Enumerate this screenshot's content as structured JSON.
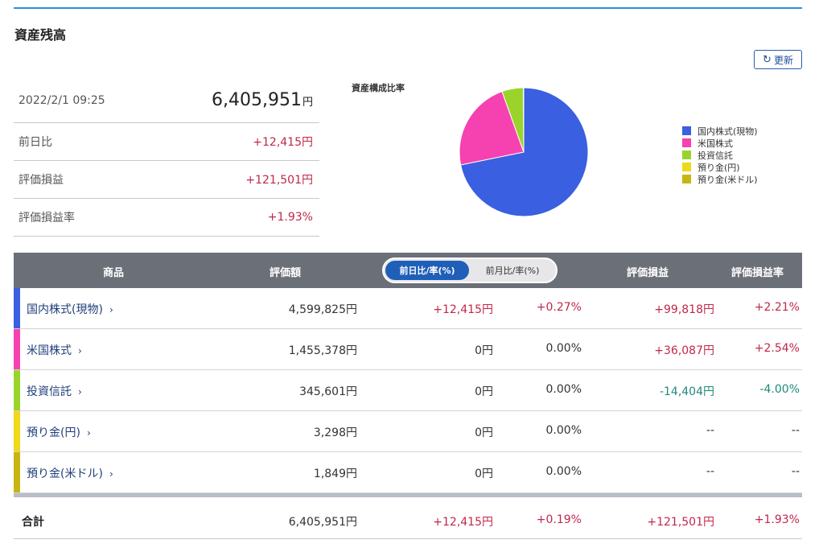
{
  "title": "資産残高",
  "refresh_label": "更新",
  "summary": {
    "datetime": "2022/2/1 09:25",
    "total_value": "6,405,951",
    "total_unit": "円",
    "rows": [
      {
        "label": "前日比",
        "value": "+12,415円"
      },
      {
        "label": "評価損益",
        "value": "+121,501円"
      },
      {
        "label": "評価損益率",
        "value": "+1.93%"
      }
    ]
  },
  "chart_data": {
    "type": "pie",
    "title": "資産構成比率",
    "legend_position": "right",
    "labels": [
      "国内株式(現物)",
      "米国株式",
      "投資信託",
      "預り金(円)",
      "預り金(米ドル)"
    ],
    "values": [
      4599825,
      1455378,
      345601,
      3298,
      1849
    ],
    "colors": [
      "#3a5fe0",
      "#f542b0",
      "#9ad42a",
      "#f0d81a",
      "#c9b512"
    ]
  },
  "table": {
    "headers": {
      "product": "商品",
      "valuation": "評価額",
      "gain": "評価損益",
      "gain_rate": "評価損益率"
    },
    "toggle": {
      "active": "前日比/率(%)",
      "inactive": "前月比/率(%)"
    },
    "rows": [
      {
        "name": "国内株式(現物)",
        "valuation": "4,599,825円",
        "day_change": "+12,415円",
        "day_rate": "+0.27%",
        "gain": "+99,818円",
        "gain_rate": "+2.21%",
        "color": "#3a5fe0"
      },
      {
        "name": "米国株式",
        "valuation": "1,455,378円",
        "day_change": "0円",
        "day_rate": "0.00%",
        "gain": "+36,087円",
        "gain_rate": "+2.54%",
        "color": "#f542b0"
      },
      {
        "name": "投資信託",
        "valuation": "345,601円",
        "day_change": "0円",
        "day_rate": "0.00%",
        "gain": "-14,404円",
        "gain_rate": "-4.00%",
        "color": "#9ad42a"
      },
      {
        "name": "預り金(円)",
        "valuation": "3,298円",
        "day_change": "0円",
        "day_rate": "0.00%",
        "gain": "--",
        "gain_rate": "--",
        "color": "#f0d81a"
      },
      {
        "name": "預り金(米ドル)",
        "valuation": "1,849円",
        "day_change": "0円",
        "day_rate": "0.00%",
        "gain": "--",
        "gain_rate": "--",
        "color": "#c9b512"
      }
    ],
    "total": {
      "label": "合計",
      "valuation": "6,405,951円",
      "day_change": "+12,415円",
      "day_rate": "+0.19%",
      "gain": "+121,501円",
      "gain_rate": "+1.93%"
    }
  }
}
